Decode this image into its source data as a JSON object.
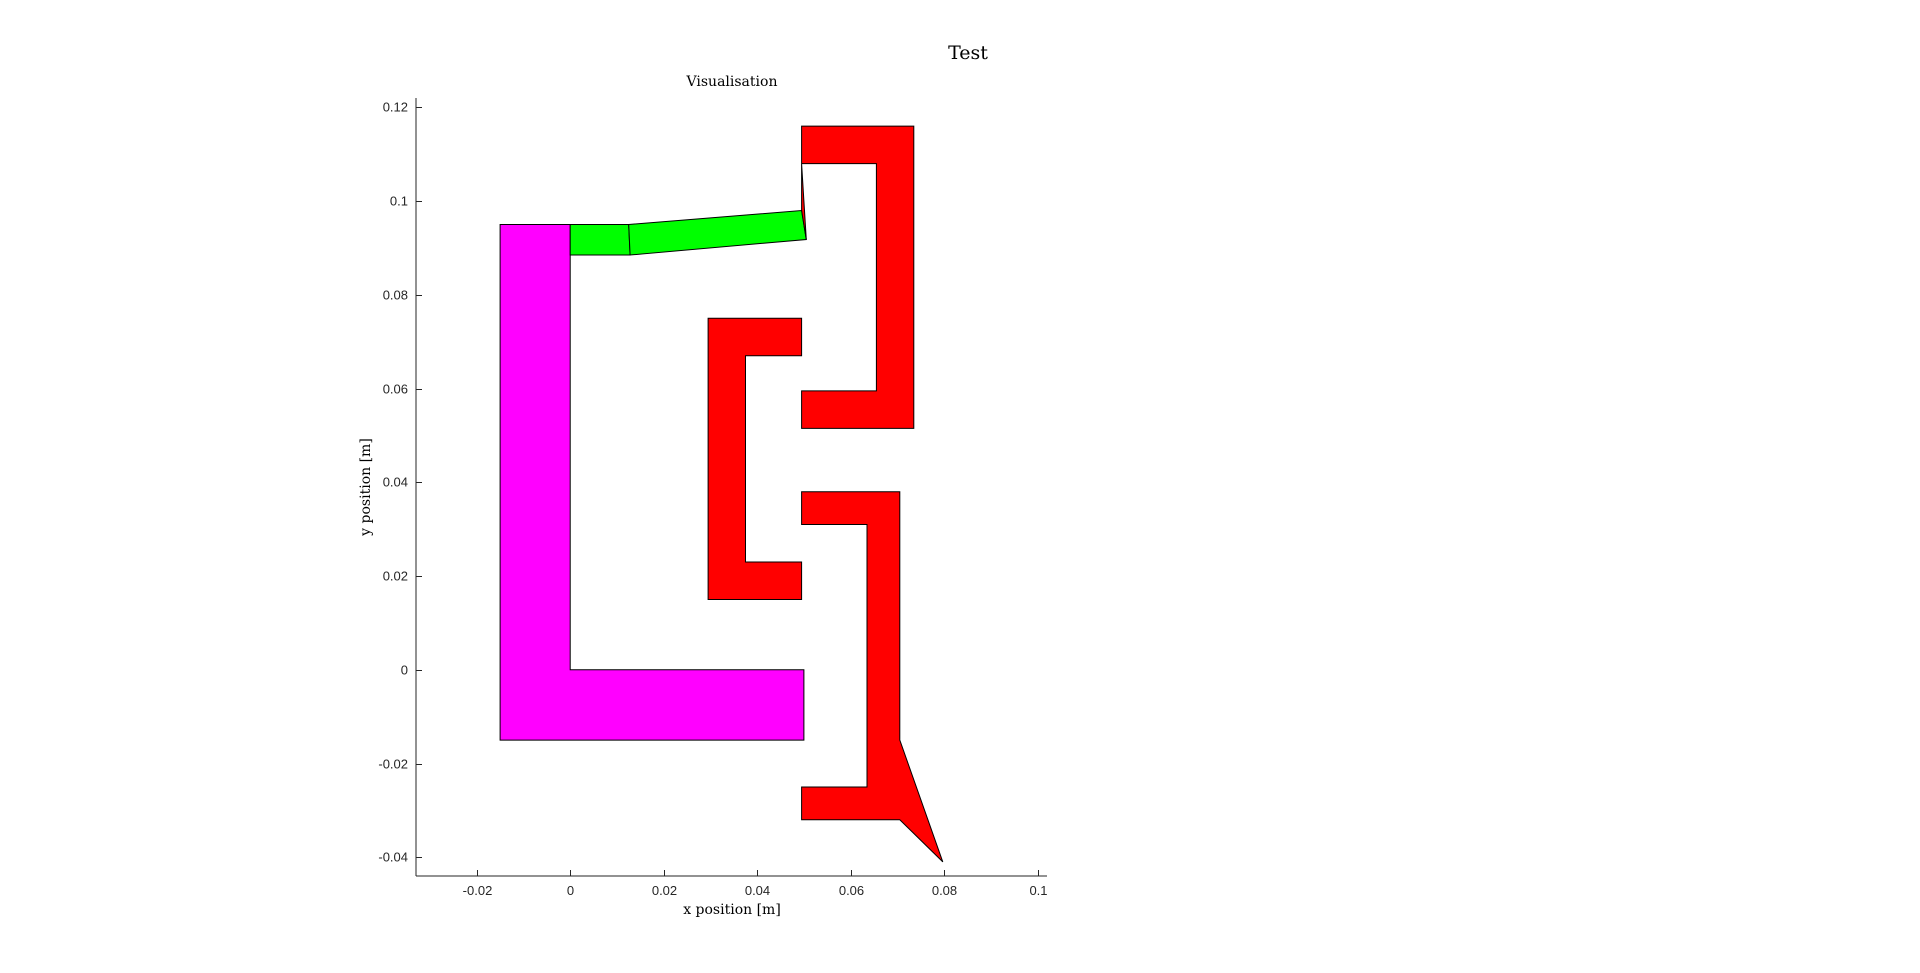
{
  "figure": {
    "title": "Test"
  },
  "colors": {
    "magenta": "#FF00FF",
    "green": "#00FF00",
    "red": "#FF0000",
    "outline": "#000000"
  },
  "chart_data": {
    "type": "polygon-plot",
    "title": "Visualisation",
    "xlabel": "x position [m]",
    "ylabel": "y position [m]",
    "xlim": [
      -0.033,
      0.102
    ],
    "ylim": [
      -0.044,
      0.122
    ],
    "xticks": [
      -0.02,
      0,
      0.02,
      0.04,
      0.06,
      0.08,
      0.1
    ],
    "xtick_labels": [
      "-0.02",
      "0",
      "0.02",
      "0.04",
      "0.06",
      "0.08",
      "0.1"
    ],
    "yticks": [
      -0.04,
      -0.02,
      0,
      0.02,
      0.04,
      0.06,
      0.08,
      0.1,
      0.12
    ],
    "ytick_labels": [
      "-0.04",
      "-0.02",
      "0",
      "0.02",
      "0.04",
      "0.06",
      "0.08",
      "0.1",
      "0.12"
    ],
    "grid": false,
    "box": "left-bottom",
    "polygons": [
      {
        "id": "base",
        "color": "magenta",
        "points": [
          [
            -0.015,
            0.095
          ],
          [
            0,
            0.095
          ],
          [
            0,
            0
          ],
          [
            0.05,
            0
          ],
          [
            0.05,
            -0.015
          ],
          [
            -0.015,
            -0.015
          ]
        ]
      },
      {
        "id": "link-1",
        "color": "green",
        "points": [
          [
            0,
            0.095
          ],
          [
            0.0125,
            0.095
          ],
          [
            0.0128,
            0.0885
          ],
          [
            0,
            0.0885
          ]
        ]
      },
      {
        "id": "link-2",
        "color": "green",
        "points": [
          [
            0.0125,
            0.095
          ],
          [
            0.0495,
            0.098
          ],
          [
            0.0505,
            0.0918
          ],
          [
            0.0128,
            0.0885
          ]
        ]
      },
      {
        "id": "upper-bracket",
        "color": "red",
        "points": [
          [
            0.0495,
            0.116
          ],
          [
            0.0735,
            0.116
          ],
          [
            0.0735,
            0.0515
          ],
          [
            0.0495,
            0.0515
          ],
          [
            0.0495,
            0.0595
          ],
          [
            0.0655,
            0.0595
          ],
          [
            0.0655,
            0.108
          ],
          [
            0.0495,
            0.108
          ],
          [
            0.05,
            0.1
          ],
          [
            0.0505,
            0.0918
          ],
          [
            0.0495,
            0.098
          ]
        ]
      },
      {
        "id": "middle-bracket",
        "color": "red",
        "points": [
          [
            0.0295,
            0.075
          ],
          [
            0.0495,
            0.075
          ],
          [
            0.0495,
            0.067
          ],
          [
            0.0375,
            0.067
          ],
          [
            0.0375,
            0.023
          ],
          [
            0.0495,
            0.023
          ],
          [
            0.0495,
            0.015
          ],
          [
            0.0295,
            0.015
          ]
        ]
      },
      {
        "id": "lower-bracket",
        "color": "red",
        "points": [
          [
            0.0495,
            0.038
          ],
          [
            0.0705,
            0.038
          ],
          [
            0.0705,
            -0.015
          ],
          [
            0.0797,
            -0.041
          ],
          [
            0.0705,
            -0.032
          ],
          [
            0.0495,
            -0.032
          ],
          [
            0.0495,
            -0.025
          ],
          [
            0.0635,
            -0.025
          ],
          [
            0.0635,
            0.031
          ],
          [
            0.0495,
            0.031
          ]
        ]
      }
    ]
  }
}
